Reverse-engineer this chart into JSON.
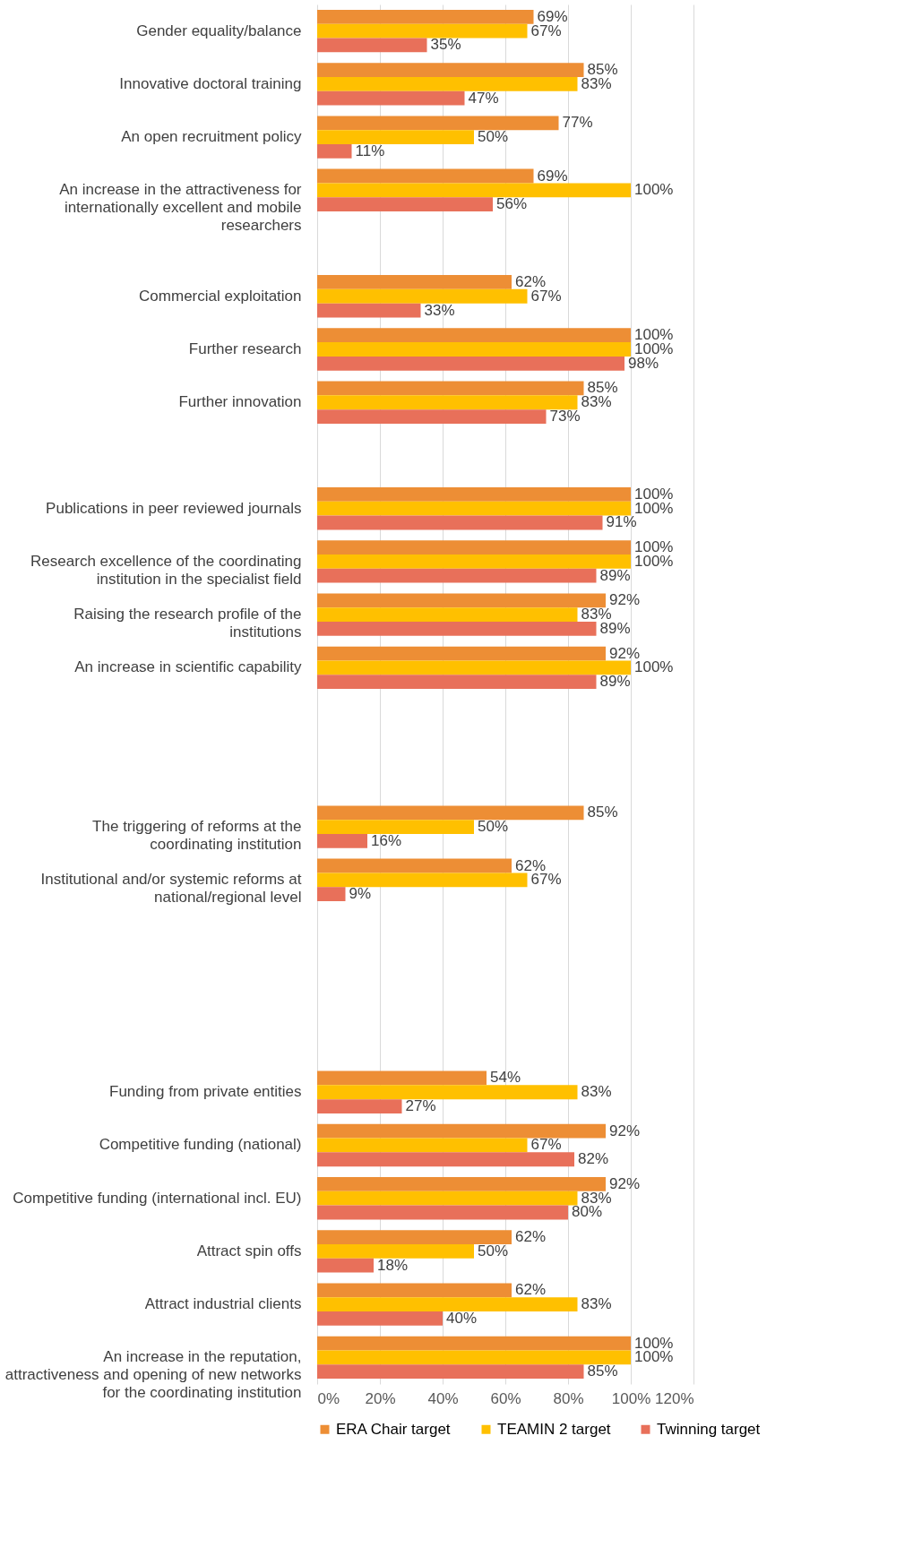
{
  "chart_data": {
    "type": "bar",
    "orientation": "horizontal",
    "categories": [
      "Gender equality/balance",
      "Innovative doctoral training",
      "An open recruitment policy",
      "An increase in the attractiveness for internationally excellent and mobile researchers",
      null,
      "Commercial exploitation",
      "Further research",
      "Further innovation",
      null,
      "Publications in peer reviewed journals",
      "Research excellence of the coordinating institution in the specialist field",
      "Raising the research profile of the institutions",
      "An increase in scientific capability",
      null,
      null,
      "The triggering of reforms at the coordinating institution",
      "Institutional and/or systemic reforms at national/regional level",
      null,
      null,
      null,
      "Funding from private entities",
      "Competitive funding (national)",
      "Competitive funding (international incl. EU)",
      "Attract spin offs",
      "Attract industrial clients",
      "An increase in the reputation, attractiveness and opening of new networks for the coordinating institution"
    ],
    "series": [
      {
        "name": "ERA Chair target",
        "color": "#ed8e35",
        "values": [
          69,
          85,
          77,
          69,
          null,
          62,
          100,
          85,
          null,
          100,
          100,
          92,
          92,
          null,
          null,
          85,
          62,
          null,
          null,
          null,
          54,
          92,
          92,
          62,
          62,
          100
        ],
        "value_labels": [
          "69%",
          "85%",
          "77%",
          "69%",
          null,
          "62%",
          "100%",
          "85%",
          null,
          "100%",
          "100%",
          "92%",
          "92%",
          null,
          null,
          "85%",
          "62%",
          null,
          null,
          null,
          "54%",
          "92%",
          "92%",
          "62%",
          "62%",
          "100%"
        ]
      },
      {
        "name": "TEAMIN 2 target",
        "color": "#ffc000",
        "values": [
          67,
          83,
          50,
          100,
          null,
          67,
          100,
          83,
          null,
          100,
          100,
          83,
          100,
          null,
          null,
          50,
          67,
          null,
          null,
          null,
          83,
          67,
          83,
          50,
          83,
          100
        ],
        "value_labels": [
          "67%",
          "83%",
          "50%",
          "100%",
          null,
          "67%",
          "100%",
          "83%",
          null,
          "100%",
          "100%",
          "83%",
          "100%",
          null,
          null,
          "50%",
          "67%",
          null,
          null,
          null,
          "83%",
          "67%",
          "83%",
          "50%",
          "83%",
          "100%"
        ]
      },
      {
        "name": "Twinning target",
        "color": "#e8705a",
        "values": [
          35,
          47,
          11,
          56,
          null,
          33,
          98,
          73,
          null,
          91,
          89,
          89,
          89,
          null,
          null,
          16,
          9,
          null,
          null,
          null,
          27,
          82,
          80,
          18,
          40,
          85
        ],
        "value_labels": [
          "35%",
          "47%",
          "11%",
          "56%",
          null,
          "33%",
          "98%",
          "73%",
          null,
          "91%",
          "89%",
          "89%",
          "89%",
          null,
          null,
          "16%",
          "9%",
          null,
          null,
          null,
          "27%",
          "82%",
          "80%",
          "18%",
          "40%",
          "85%"
        ]
      }
    ],
    "xlim": [
      0,
      120
    ],
    "xticks": [
      {
        "value": 0,
        "label": "0%"
      },
      {
        "value": 20,
        "label": "20%"
      },
      {
        "value": 40,
        "label": "40%"
      },
      {
        "value": 60,
        "label": "60%"
      },
      {
        "value": 80,
        "label": "80%"
      },
      {
        "value": 100,
        "label": "100%"
      },
      {
        "value": 120,
        "label": "120%"
      }
    ],
    "grid": "x",
    "legend": "bottom"
  }
}
